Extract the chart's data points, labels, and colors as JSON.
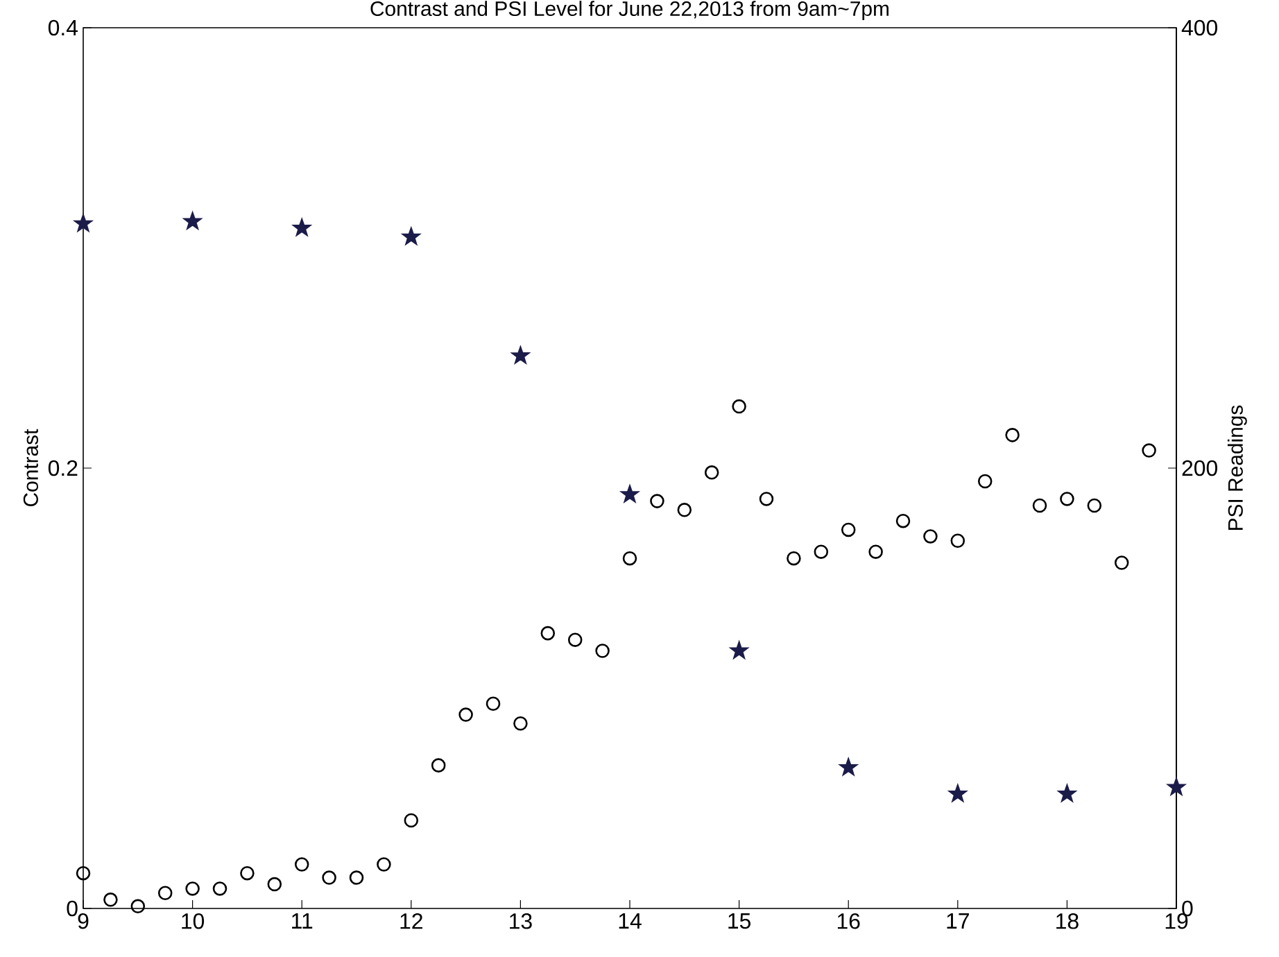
{
  "chart_data": {
    "type": "scatter",
    "title": "Contrast and PSI Level for June 22,2013 from 9am~7pm",
    "ylabel": "Contrast",
    "y2label": "PSI Readings",
    "xlim": [
      9,
      19
    ],
    "xticks": [
      9,
      10,
      11,
      12,
      13,
      14,
      15,
      16,
      17,
      18,
      19
    ],
    "ylim": [
      0,
      0.4
    ],
    "yticks": [
      0,
      0.2,
      0.4
    ],
    "y2lim": [
      0,
      400
    ],
    "y2ticks": [
      0,
      200,
      400
    ],
    "series": [
      {
        "color": "#000000",
        "marker": "circle",
        "x": [
          9,
          9.25,
          9.5,
          9.75,
          10,
          10.25,
          10.5,
          10.75,
          11,
          11.25,
          11.5,
          11.75,
          12,
          12.25,
          12.5,
          12.75,
          13,
          13.25,
          13.5,
          13.75,
          14,
          14.25,
          14.5,
          14.75,
          15,
          15.25,
          15.5,
          15.75,
          16,
          16.25,
          16.5,
          16.75,
          17,
          17.25,
          17.5,
          17.75,
          18,
          18.25,
          18.5,
          18.75
        ],
        "values": [
          0.016,
          0.004,
          0.001,
          0.007,
          0.009,
          0.009,
          0.016,
          0.011,
          0.02,
          0.014,
          0.014,
          0.02,
          0.04,
          0.065,
          0.088,
          0.093,
          0.084,
          0.125,
          0.122,
          0.117,
          0.159,
          0.185,
          0.181,
          0.198,
          0.228,
          0.186,
          0.159,
          0.162,
          0.172,
          0.162,
          0.176,
          0.169,
          0.167,
          0.194,
          0.215,
          0.183,
          0.186,
          0.183,
          0.157,
          0.208
        ]
      },
      {
        "color": "#1c1c4a",
        "marker": "star",
        "axis": "y2",
        "x": [
          9,
          10,
          11,
          12,
          13,
          14,
          15,
          16,
          17,
          18,
          19
        ],
        "values": [
          311,
          312,
          309,
          305,
          251,
          188,
          117,
          64,
          52,
          52,
          55
        ]
      }
    ]
  }
}
